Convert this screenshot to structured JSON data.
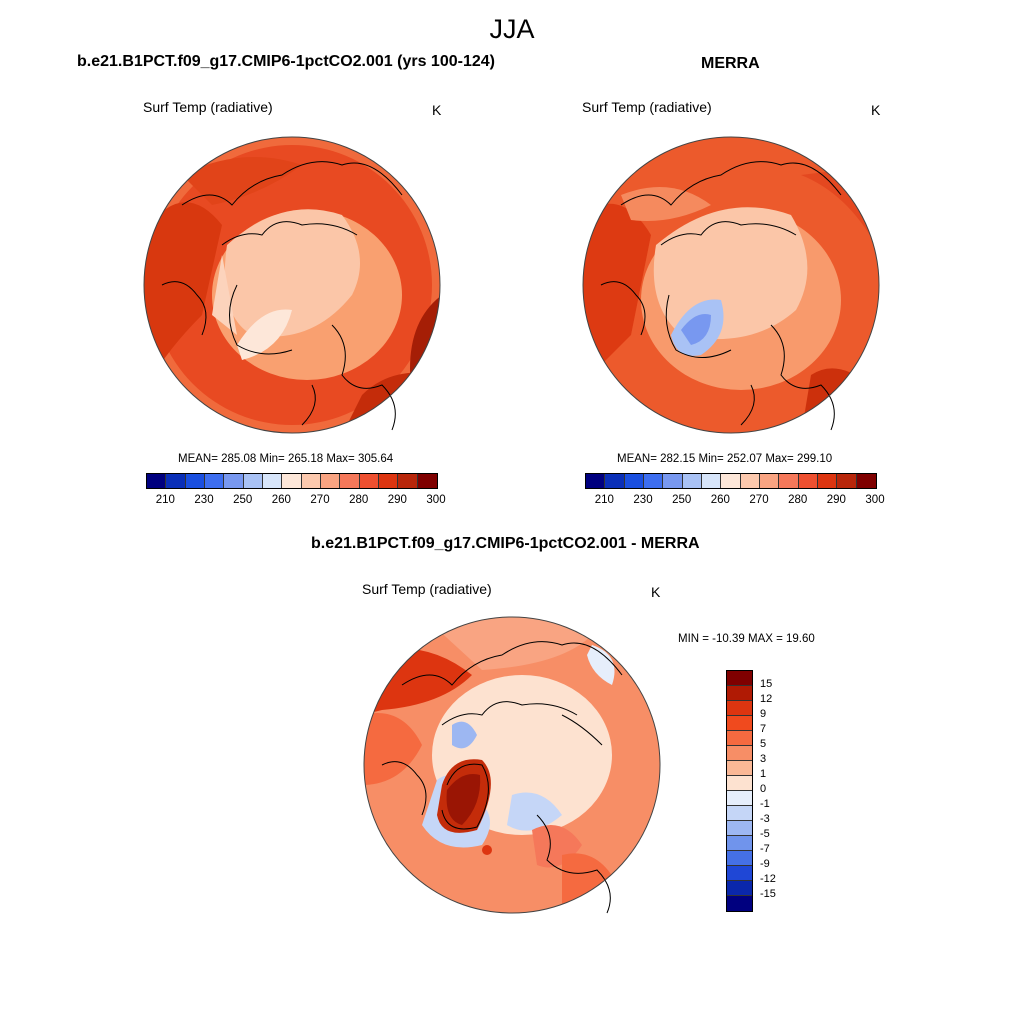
{
  "title": "JJA",
  "panels": [
    {
      "title": "b.e21.B1PCT.f09_g17.CMIP6-1pctCO2.001 (yrs 100-124)",
      "variable": "Surf Temp (radiative)",
      "units": "K",
      "stats": "MEAN= 285.08  Min= 265.18  Max= 305.64"
    },
    {
      "title": "MERRA",
      "variable": "Surf Temp (radiative)",
      "units": "K",
      "stats": "MEAN= 282.15  Min= 252.07  Max= 299.10"
    },
    {
      "title": "b.e21.B1PCT.f09_g17.CMIP6-1pctCO2.001 - MERRA",
      "variable": "Surf Temp (radiative)",
      "units": "K",
      "stats": "MIN = -10.39 MAX =  19.60"
    }
  ],
  "abs_colorbar": {
    "ticks": [
      "210",
      "230",
      "250",
      "260",
      "270",
      "280",
      "290",
      "300"
    ],
    "colors": [
      "#00007f",
      "#0a2fb8",
      "#1a4fe0",
      "#3d6ef0",
      "#7898f0",
      "#a9c2f5",
      "#d7e5fa",
      "#fde7d9",
      "#fcc9ae",
      "#f9a482",
      "#f5785a",
      "#ee5030",
      "#dd3510",
      "#b8260a",
      "#7f0000"
    ]
  },
  "diff_colorbar": {
    "ticks": [
      "15",
      "12",
      "9",
      "7",
      "5",
      "3",
      "1",
      "0",
      "-1",
      "-3",
      "-5",
      "-7",
      "-9",
      "-12",
      "-15"
    ],
    "colors": [
      "#7f0000",
      "#b01a04",
      "#dd3510",
      "#f04a1e",
      "#f56a40",
      "#f78e66",
      "#fab896",
      "#fde2d0",
      "#e6eefb",
      "#c5d6f7",
      "#9db7f2",
      "#7094ec",
      "#4570e6",
      "#1f47d6",
      "#0a27ab",
      "#00007f"
    ]
  },
  "map_colors": {
    "land_outline": "#000000",
    "disc_edge": "#444444"
  }
}
